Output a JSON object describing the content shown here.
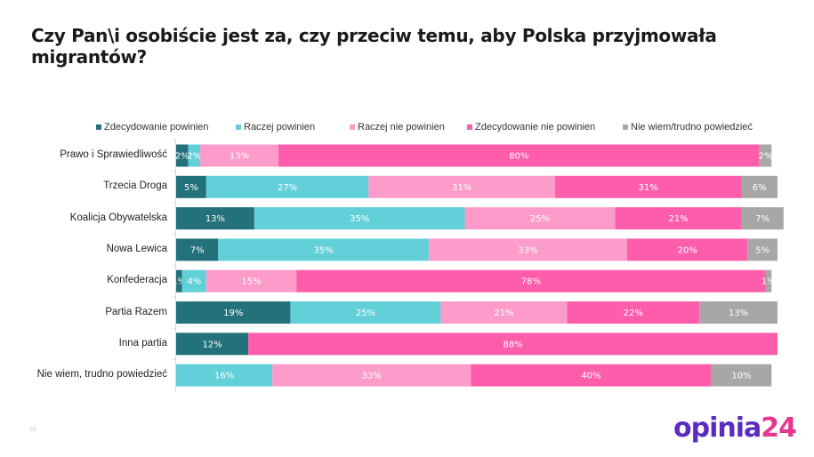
{
  "chart_data": {
    "type": "bar",
    "orientation": "horizontal",
    "stacked": true,
    "normalized": true,
    "title": "Czy Pan\\i osobiście jest za, czy przeciw temu, aby Polska przyjmowała migrantów?",
    "xlabel": "",
    "ylabel": "",
    "xlim": [
      0,
      100
    ],
    "grid": false,
    "legend_position": "top",
    "categories": [
      "Prawo i Sprawiedliwość",
      "Trzecia Droga",
      "Koalicja Obywatelska",
      "Nowa Lewica",
      "Konfederacja",
      "Partia Razem",
      "Inna partia",
      "Nie wiem, trudno powiedzieć"
    ],
    "series": [
      {
        "name": "Zdecydowanie powinien",
        "color": "#23717a",
        "values": [
          2,
          5,
          13,
          7,
          1,
          19,
          12,
          0
        ]
      },
      {
        "name": "Raczej powinien",
        "color": "#62d0d8",
        "values": [
          2,
          27,
          35,
          35,
          4,
          25,
          0,
          16
        ]
      },
      {
        "name": "Raczej nie powinien",
        "color": "#fd9ccb",
        "values": [
          13,
          31,
          25,
          33,
          15,
          21,
          0,
          33
        ]
      },
      {
        "name": "Zdecydowanie nie powinien",
        "color": "#fe5dab",
        "values": [
          80,
          31,
          21,
          20,
          78,
          22,
          88,
          40
        ]
      },
      {
        "name": "Nie wiem/trudno powiedzieć",
        "color": "#a9a6a6",
        "values": [
          2,
          6,
          7,
          5,
          1,
          13,
          0,
          10
        ]
      }
    ],
    "value_suffix": "%"
  },
  "footer": {
    "page_number": "28",
    "logo_part1": "opinia",
    "logo_part2": "24"
  }
}
